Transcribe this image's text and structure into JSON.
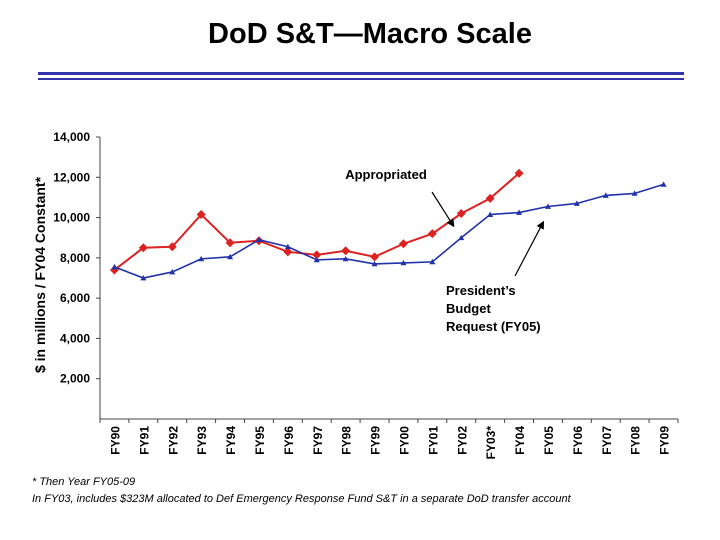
{
  "title": "DoD S&T—Macro Scale",
  "footnotes": [
    "* Then Year FY05-09",
    "In FY03, includes $323M allocated to Def Emergency Response Fund S&T in a separate DoD transfer account"
  ],
  "chart_data": {
    "type": "line",
    "title": "DoD S&T—Macro Scale",
    "xlabel": "",
    "ylabel": "$ in millions / FY04 Constant*",
    "ylim": [
      0,
      14000
    ],
    "yticks": [
      "2,000",
      "4,000",
      "6,000",
      "8,000",
      "10,000",
      "12,000",
      "14,000"
    ],
    "categories": [
      "FY90",
      "FY91",
      "FY92",
      "FY93",
      "FY94",
      "FY95",
      "FY96",
      "FY97",
      "FY98",
      "FY99",
      "FY00",
      "FY01",
      "FY02",
      "FY03*",
      "FY04",
      "FY05",
      "FY06",
      "FY07",
      "FY08",
      "FY09"
    ],
    "grid": false,
    "series": [
      {
        "name": "Appropriated",
        "color": "#dd2222",
        "marker": "diamond",
        "values": [
          7400,
          8500,
          8550,
          10150,
          8750,
          8850,
          8300,
          8150,
          8350,
          8050,
          8700,
          9200,
          10200,
          10950,
          12200,
          null,
          null,
          null,
          null,
          null
        ]
      },
      {
        "name": "President’s Budget Request (FY05)",
        "color": "#2233aa",
        "marker": "triangle",
        "values": [
          7550,
          7000,
          7300,
          7950,
          8050,
          8900,
          8550,
          7900,
          7950,
          7700,
          7750,
          7800,
          9000,
          10150,
          10250,
          10550,
          10700,
          11100,
          11200,
          11650
        ]
      }
    ],
    "annotations": [
      {
        "text": "Appropriated",
        "series": "Appropriated",
        "points_to": "FY02"
      },
      {
        "text": [
          "President’s",
          "Budget",
          "Request (FY05)"
        ],
        "series": "President’s Budget Request (FY05)",
        "points_to": "FY04"
      }
    ]
  }
}
